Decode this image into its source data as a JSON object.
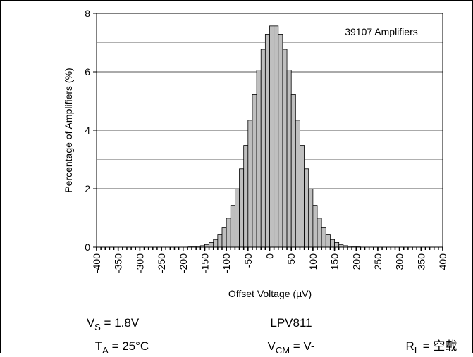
{
  "chart_data": {
    "type": "histogram",
    "xlabel": "Offset Voltage (µV)",
    "ylabel": "Percentage of Amplifiers (%)",
    "annotation": "39107 Amplifiers",
    "bins": [
      -400,
      -390,
      -380,
      -370,
      -360,
      -350,
      -340,
      -330,
      -320,
      -310,
      -300,
      -290,
      -280,
      -270,
      -260,
      -250,
      -240,
      -230,
      -220,
      -210,
      -200,
      -190,
      -180,
      -170,
      -160,
      -150,
      -140,
      -130,
      -120,
      -110,
      -100,
      -90,
      -80,
      -70,
      -60,
      -50,
      -40,
      -30,
      -20,
      -10,
      0,
      10,
      20,
      30,
      40,
      50,
      60,
      70,
      80,
      90,
      100,
      110,
      120,
      130,
      140,
      150,
      160,
      170,
      180,
      190,
      200,
      210,
      220,
      230,
      240,
      250,
      260,
      270,
      280,
      290,
      300,
      310,
      320,
      330,
      340,
      350,
      360,
      370,
      380,
      390,
      400
    ],
    "counts": [
      0,
      0,
      0,
      0,
      0,
      0,
      0,
      0,
      0,
      0,
      0,
      0,
      0,
      0,
      0,
      0,
      0,
      0,
      0,
      0,
      0,
      0.01,
      0.01,
      0.03,
      0.05,
      0.09,
      0.16,
      0.26,
      0.42,
      0.66,
      0.99,
      1.43,
      1.99,
      2.68,
      3.48,
      4.34,
      5.22,
      6.06,
      6.77,
      7.29,
      7.57,
      7.57,
      7.29,
      6.77,
      6.06,
      5.22,
      4.34,
      3.48,
      2.68,
      1.99,
      1.43,
      0.99,
      0.66,
      0.42,
      0.26,
      0.16,
      0.09,
      0.05,
      0.03,
      0.01,
      0.01,
      0,
      0,
      0,
      0,
      0,
      0,
      0,
      0,
      0,
      0,
      0,
      0,
      0,
      0,
      0,
      0,
      0,
      0,
      0
    ],
    "color": "#bfbfbf",
    "xlim": [
      -400,
      400
    ],
    "xticks": [
      -400,
      -350,
      -300,
      -250,
      -200,
      -150,
      -100,
      -50,
      0,
      50,
      100,
      150,
      200,
      250,
      300,
      350,
      400
    ],
    "ylim": [
      0,
      8
    ],
    "yticks": [
      0,
      2,
      4,
      6,
      8
    ],
    "minor_yticks": [
      1,
      3,
      5,
      7
    ],
    "grid": true,
    "conditions": [
      {
        "symbol": "V",
        "sub": "S",
        "value": " = 1.8V"
      },
      {
        "symbol": "LPV811",
        "sub": "",
        "value": ""
      },
      {
        "symbol": "T",
        "sub": "A",
        "value": " = 25°C"
      },
      {
        "symbol": "V",
        "sub": "CM",
        "value": " = V-"
      },
      {
        "symbol": "R",
        "sub": "L",
        "value": " = 空载"
      }
    ]
  }
}
